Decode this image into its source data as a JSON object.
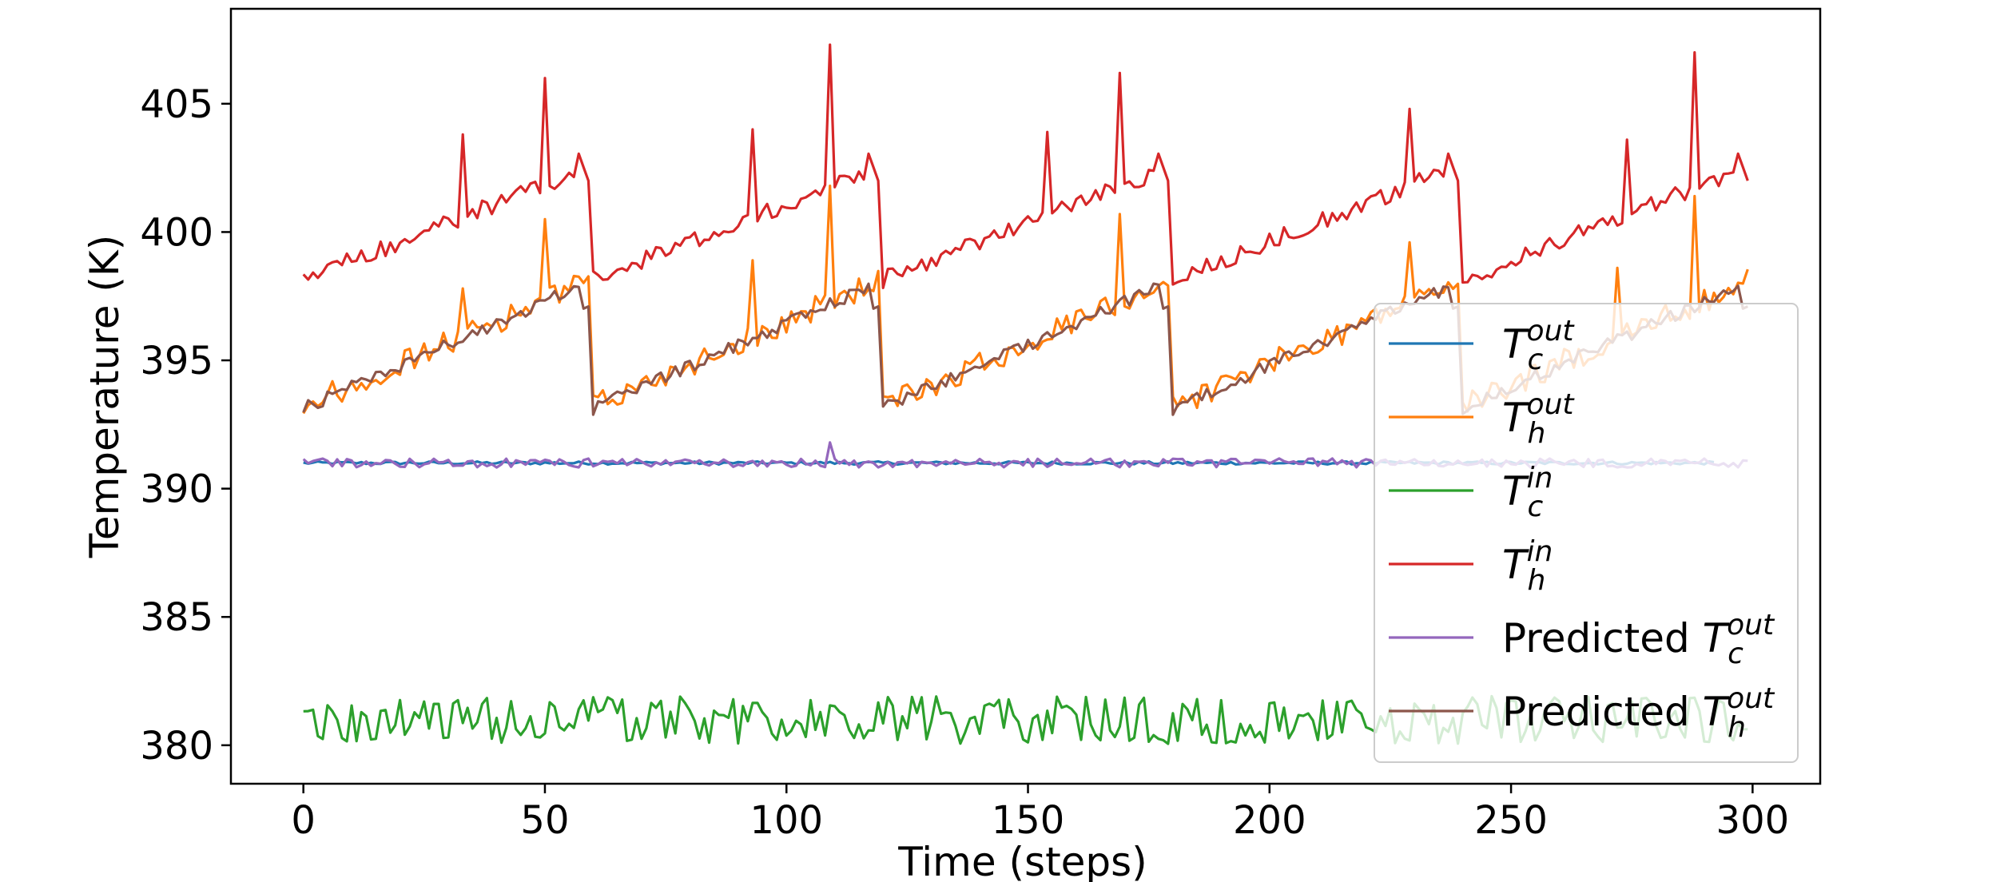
{
  "chart_data": {
    "type": "line",
    "xlabel": "Time (steps)",
    "ylabel": "Temperature (K)",
    "xlim": [
      -15,
      314
    ],
    "ylim": [
      378.5,
      408.7
    ],
    "xticks": [
      0,
      50,
      100,
      150,
      200,
      250,
      300
    ],
    "yticks": [
      380,
      385,
      390,
      395,
      400,
      405
    ],
    "legend_position": "lower-right",
    "x": "0..299 (one point per step)",
    "series": [
      {
        "name": "T_c^out",
        "legend": {
          "base": "T",
          "sub": "c",
          "sup": "out",
          "prefix": ""
        },
        "color": "#1f77b4",
        "approx_mean": 391.0,
        "values": [
          391.0,
          391.0,
          391.0,
          391.0,
          391.0,
          391.0,
          391.0,
          391.0,
          391.0,
          391.0,
          391.0,
          391.0,
          391.0,
          391.0,
          391.0,
          391.0,
          391.0,
          391.0,
          391.0,
          391.0,
          391.0,
          391.0,
          391.0,
          391.0,
          391.0,
          391.0,
          391.0,
          391.0,
          391.0,
          391.0,
          391.0,
          391.0,
          391.0,
          391.0,
          391.0,
          391.0,
          391.0,
          391.0,
          391.0,
          391.0,
          391.0,
          391.0,
          391.0,
          391.0,
          391.0,
          391.0,
          391.0,
          391.0,
          391.0,
          391.0,
          391.0,
          391.0,
          391.0,
          391.0,
          391.0,
          391.0,
          391.0,
          391.0,
          391.0,
          391.0,
          391.0,
          391.0,
          391.0,
          391.0,
          391.0,
          391.0,
          391.0,
          391.0,
          391.0,
          391.0,
          391.0,
          391.0,
          391.0,
          391.0,
          391.0,
          391.0,
          391.0,
          391.0,
          391.0,
          391.0,
          391.0,
          391.0,
          391.0,
          391.0,
          391.0,
          391.0,
          391.0,
          391.0,
          391.0,
          391.0,
          391.0,
          391.0,
          391.0,
          391.0,
          391.0,
          391.0,
          391.0,
          391.0,
          391.0,
          391.0,
          391.0,
          391.0,
          391.0,
          391.0,
          391.0,
          391.0,
          391.0,
          391.0,
          391.0,
          391.0,
          391.0,
          391.0,
          391.0,
          391.0,
          391.0,
          391.0,
          391.0,
          391.0,
          391.0,
          391.0,
          391.0,
          391.0,
          391.0,
          391.0,
          391.0,
          391.0,
          391.0,
          391.0,
          391.0,
          391.0,
          391.0,
          391.0,
          391.0,
          391.0,
          391.0,
          391.0,
          391.0,
          391.0,
          391.0,
          391.0,
          391.0,
          391.0,
          391.0,
          391.0,
          391.0,
          391.0,
          391.0,
          391.0,
          391.0,
          391.0,
          391.0,
          391.0,
          391.0,
          391.0,
          391.0,
          391.0,
          391.0,
          391.0,
          391.0,
          391.0,
          391.0,
          391.0,
          391.0,
          391.0,
          391.0,
          391.0,
          391.0,
          391.0,
          391.0,
          391.0,
          391.0,
          391.0,
          391.0,
          391.0,
          391.0,
          391.0,
          391.0,
          391.0,
          391.0,
          391.0,
          391.0,
          391.0,
          391.0,
          391.0,
          391.0,
          391.0,
          391.0,
          391.0,
          391.0,
          391.0,
          391.0,
          391.0,
          391.0,
          391.0,
          391.0,
          391.0,
          391.0,
          391.0,
          391.0,
          391.0,
          391.0,
          391.0,
          391.0,
          391.0,
          391.0,
          391.0,
          391.0,
          391.0,
          391.0,
          391.0,
          391.0,
          391.0,
          391.0,
          391.0,
          391.0,
          391.0,
          391.0,
          391.0,
          391.0,
          391.0,
          391.0,
          391.0,
          391.0,
          391.0,
          391.0,
          391.0,
          391.0,
          391.0,
          391.0,
          391.0,
          391.0,
          391.0,
          391.0,
          391.0,
          391.0,
          391.0,
          391.0,
          391.0,
          391.0,
          391.0,
          391.0,
          391.0,
          391.0,
          391.0,
          391.0,
          391.0,
          391.0,
          391.0,
          391.0,
          391.0,
          391.0,
          391.0,
          391.0,
          391.0,
          391.0,
          391.0,
          391.0,
          391.0,
          391.0,
          391.0,
          391.0,
          391.0,
          391.0,
          391.0,
          391.0,
          391.0,
          391.0,
          391.0,
          391.0,
          391.0,
          391.0,
          391.0,
          391.0,
          391.0,
          391.0,
          391.0,
          391.0,
          391.0,
          391.0,
          391.0,
          391.0,
          391.0,
          391.0,
          391.0,
          391.0,
          391.0,
          391.0,
          391.0,
          391.0,
          391.0,
          391.0,
          391.0,
          391.0
        ]
      },
      {
        "name": "T_h^out",
        "legend": {
          "base": "T",
          "sub": "h",
          "sup": "out",
          "prefix": ""
        },
        "color": "#ff7f0e",
        "approx_range": [
          393.0,
          401.5
        ],
        "description": "sawtooth resetting every 60 steps from ~393 to ~398 with spikes"
      },
      {
        "name": "T_c^in",
        "legend": {
          "base": "T",
          "sub": "c",
          "sup": "in",
          "prefix": ""
        },
        "color": "#2ca02c",
        "approx_mean": 381.0,
        "approx_range": [
          380.0,
          382.2
        ]
      },
      {
        "name": "T_h^in",
        "legend": {
          "base": "T",
          "sub": "h",
          "sup": "in",
          "prefix": ""
        },
        "color": "#d62728",
        "approx_range": [
          398.0,
          407.3
        ],
        "description": "sawtooth resetting every 60 steps from ~398 to ~403 with spikes"
      },
      {
        "name": "Predicted T_c^out",
        "legend": {
          "base": "T",
          "sub": "c",
          "sup": "out",
          "prefix": "Predicted "
        },
        "color": "#9467bd",
        "approx_mean": 391.0
      },
      {
        "name": "Predicted T_h^out",
        "legend": {
          "base": "T",
          "sub": "h",
          "sup": "out",
          "prefix": "Predicted "
        },
        "color": "#8c564b",
        "approx_range": [
          393.0,
          398.5
        ]
      }
    ]
  }
}
